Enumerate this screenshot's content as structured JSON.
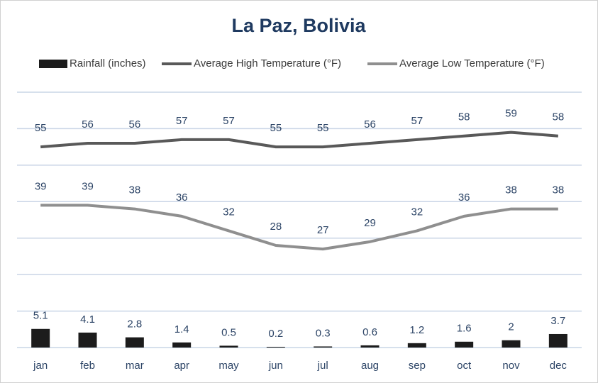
{
  "chart_data": {
    "type": "bar-line",
    "title": "La Paz, Bolivia",
    "categories": [
      "jan",
      "feb",
      "mar",
      "apr",
      "may",
      "jun",
      "jul",
      "aug",
      "sep",
      "oct",
      "nov",
      "dec"
    ],
    "series": [
      {
        "name": "Rainfall (inches)",
        "type": "bar",
        "color": "#1c1c1c",
        "values": [
          5.1,
          4.1,
          2.8,
          1.4,
          0.5,
          0.2,
          0.3,
          0.6,
          1.2,
          1.6,
          2,
          3.7
        ]
      },
      {
        "name": "Average High Temperature (°F)",
        "type": "line",
        "color": "#595959",
        "values": [
          55,
          56,
          56,
          57,
          57,
          55,
          55,
          56,
          57,
          58,
          59,
          58
        ]
      },
      {
        "name": "Average Low Temperature (°F)",
        "type": "line",
        "color": "#8f8f8f",
        "values": [
          39,
          39,
          38,
          36,
          32,
          28,
          27,
          29,
          32,
          36,
          38,
          38
        ]
      }
    ],
    "ylim": [
      0,
      70
    ],
    "yticks": [
      0,
      10,
      20,
      30,
      40,
      50,
      60,
      70
    ],
    "grid": true,
    "legend": "top"
  }
}
